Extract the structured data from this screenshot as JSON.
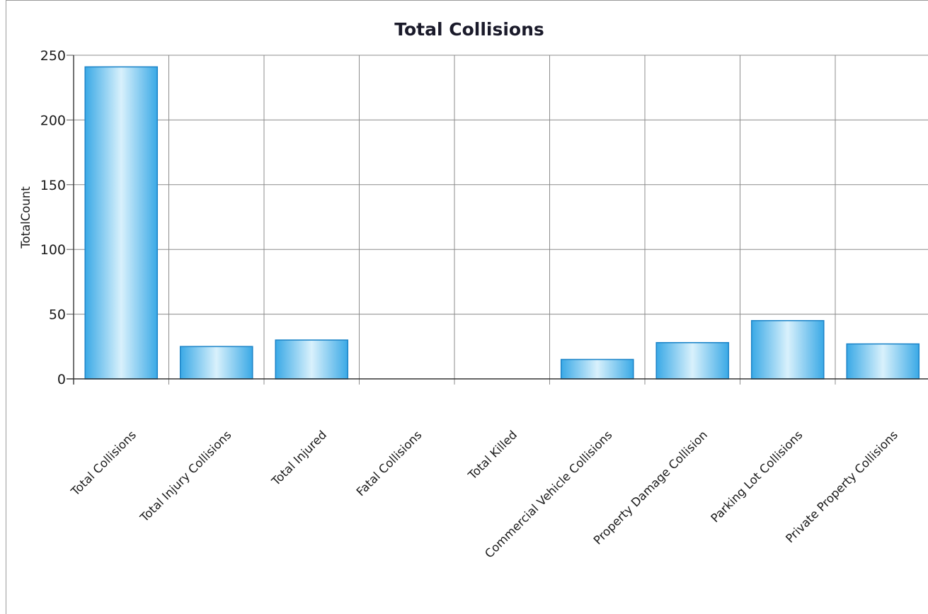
{
  "chart_data": {
    "type": "bar",
    "title": "Total Collisions",
    "xlabel": "",
    "ylabel": "TotalCount",
    "ylim": [
      0,
      250
    ],
    "yticks": [
      "0",
      "50",
      "100",
      "150",
      "200",
      "250"
    ],
    "grid": true,
    "categories": [
      "Total Collisions",
      "Total Injury Collisions",
      "Total Injured",
      "Fatal Collisions",
      "Total Killed",
      "Commercial Vehicle Collisions",
      "Property Damage Collision",
      "Parking Lot Collisions",
      "Private Property Collisions"
    ],
    "values": [
      241,
      25,
      30,
      0,
      0,
      15,
      28,
      45,
      27
    ],
    "bar_color": "#5bbfee"
  }
}
